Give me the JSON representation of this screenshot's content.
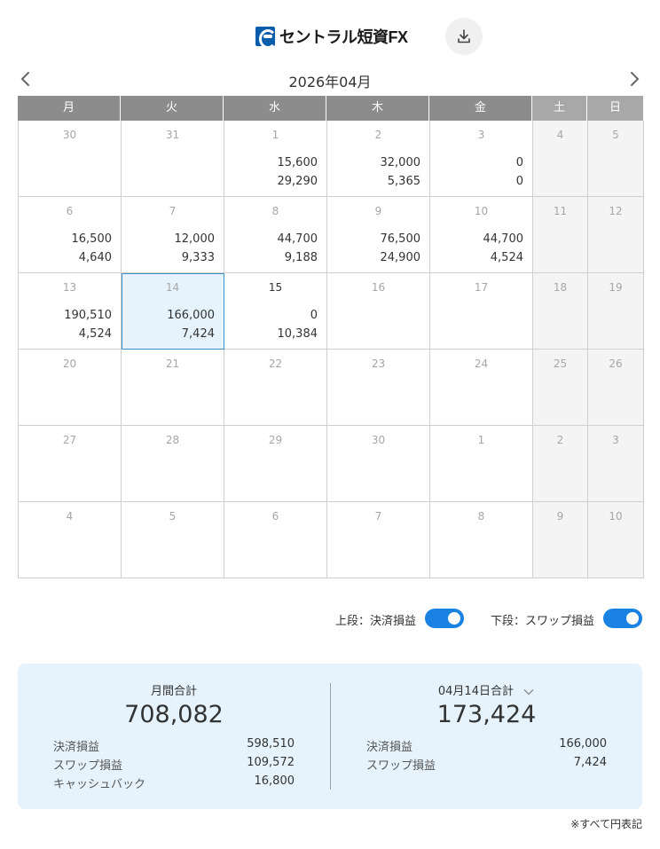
{
  "header": {
    "logo_text": "セントラル短資FX",
    "download_icon": "download-icon"
  },
  "nav": {
    "month_title": "2026年04月",
    "prev_icon": "chevron-left-icon",
    "next_icon": "chevron-right-icon"
  },
  "calendar": {
    "weekdays": [
      "月",
      "火",
      "水",
      "木",
      "金",
      "土",
      "日"
    ],
    "weeks": [
      [
        {
          "day": "30",
          "v1": "",
          "v2": ""
        },
        {
          "day": "31",
          "v1": "",
          "v2": ""
        },
        {
          "day": "1",
          "v1": "15,600",
          "v2": "29,290"
        },
        {
          "day": "2",
          "v1": "32,000",
          "v2": "5,365"
        },
        {
          "day": "3",
          "v1": "0",
          "v2": "0"
        },
        {
          "day": "4",
          "v1": "",
          "v2": ""
        },
        {
          "day": "5",
          "v1": "",
          "v2": ""
        }
      ],
      [
        {
          "day": "6",
          "v1": "16,500",
          "v2": "4,640"
        },
        {
          "day": "7",
          "v1": "12,000",
          "v2": "9,333"
        },
        {
          "day": "8",
          "v1": "44,700",
          "v2": "9,188"
        },
        {
          "day": "9",
          "v1": "76,500",
          "v2": "24,900"
        },
        {
          "day": "10",
          "v1": "44,700",
          "v2": "4,524"
        },
        {
          "day": "11",
          "v1": "",
          "v2": ""
        },
        {
          "day": "12",
          "v1": "",
          "v2": ""
        }
      ],
      [
        {
          "day": "13",
          "v1": "190,510",
          "v2": "4,524"
        },
        {
          "day": "14",
          "v1": "166,000",
          "v2": "7,424",
          "selected": true
        },
        {
          "day": "15",
          "v1": "0",
          "v2": "10,384",
          "today": true
        },
        {
          "day": "16",
          "v1": "",
          "v2": ""
        },
        {
          "day": "17",
          "v1": "",
          "v2": ""
        },
        {
          "day": "18",
          "v1": "",
          "v2": ""
        },
        {
          "day": "19",
          "v1": "",
          "v2": ""
        }
      ],
      [
        {
          "day": "20",
          "v1": "",
          "v2": ""
        },
        {
          "day": "21",
          "v1": "",
          "v2": ""
        },
        {
          "day": "22",
          "v1": "",
          "v2": ""
        },
        {
          "day": "23",
          "v1": "",
          "v2": ""
        },
        {
          "day": "24",
          "v1": "",
          "v2": ""
        },
        {
          "day": "25",
          "v1": "",
          "v2": ""
        },
        {
          "day": "26",
          "v1": "",
          "v2": ""
        }
      ],
      [
        {
          "day": "27",
          "v1": "",
          "v2": ""
        },
        {
          "day": "28",
          "v1": "",
          "v2": ""
        },
        {
          "day": "29",
          "v1": "",
          "v2": ""
        },
        {
          "day": "30",
          "v1": "",
          "v2": ""
        },
        {
          "day": "1",
          "v1": "",
          "v2": ""
        },
        {
          "day": "2",
          "v1": "",
          "v2": ""
        },
        {
          "day": "3",
          "v1": "",
          "v2": ""
        }
      ],
      [
        {
          "day": "4",
          "v1": "",
          "v2": ""
        },
        {
          "day": "5",
          "v1": "",
          "v2": ""
        },
        {
          "day": "6",
          "v1": "",
          "v2": ""
        },
        {
          "day": "7",
          "v1": "",
          "v2": ""
        },
        {
          "day": "8",
          "v1": "",
          "v2": ""
        },
        {
          "day": "9",
          "v1": "",
          "v2": ""
        },
        {
          "day": "10",
          "v1": "",
          "v2": ""
        }
      ]
    ]
  },
  "toggles": {
    "upper_label": "上段：決済損益",
    "upper_on": true,
    "lower_label": "下段：スワップ損益",
    "lower_on": true
  },
  "summary": {
    "monthly": {
      "title": "月間合計",
      "total": "708,082",
      "rows": [
        {
          "label": "決済損益",
          "value": "598,510"
        },
        {
          "label": "スワップ損益",
          "value": "109,572"
        },
        {
          "label": "キャッシュバック",
          "value": "16,800"
        }
      ]
    },
    "daily": {
      "title": "04月14日合計",
      "dropdown_icon": "chevron-down-icon",
      "total": "173,424",
      "rows": [
        {
          "label": "決済損益",
          "value": "166,000"
        },
        {
          "label": "スワップ損益",
          "value": "7,424"
        }
      ]
    }
  },
  "footnote": "※すべて円表記",
  "colors": {
    "accent": "#1a82e2",
    "header_bg": "#8c8c8c",
    "summary_bg": "#e6f3fc",
    "selected_border": "#3a8fc8"
  }
}
